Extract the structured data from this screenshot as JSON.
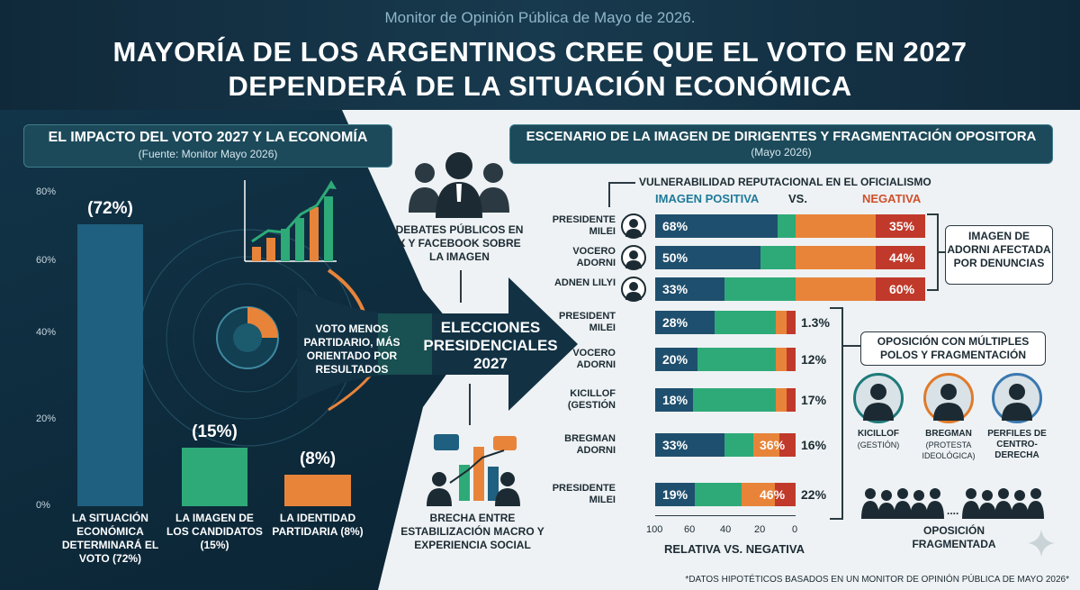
{
  "header": {
    "kicker": "Monitor de Opinión Pública de Mayo de 2026.",
    "title_line1": "MAYORÍA DE LOS ARGENTINOS CREE QUE EL VOTO EN 2027",
    "title_line2": "DEPENDERÁ DE LA SITUACIÓN ECONÓMICA"
  },
  "left_panel": {
    "title": "EL IMPACTO DEL VOTO 2027 Y LA ECONOMÍA",
    "subtitle": "(Fuente: Monitor Mayo 2026)"
  },
  "center": {
    "debates": "DEBATES PÚBLICOS EN X Y FACEBOOK SOBRE LA IMAGEN",
    "voto": "VOTO MENOS PARTIDARIO, MÁS ORIENTADO POR RESULTADOS",
    "elecciones": "ELECCIONES PRESIDENCIALES 2027",
    "brecha": "BRECHA ENTRE ESTABILIZACIÓN MACRO Y EXPERIENCIA SOCIAL"
  },
  "right_panel": {
    "title": "ESCENARIO DE LA IMAGEN DE DIRIGENTES Y FRAGMENTACIÓN OPOSITORA",
    "subtitle": "(Mayo 2026)",
    "vuln": "VULNERABILIDAD REPUTACIONAL EN EL OFICIALISMO",
    "pos": "IMAGEN POSITIVA",
    "vs": "VS.",
    "neg": "NEGATIVA",
    "adorni_box": "IMAGEN DE ADORNI AFECTADA POR DENUNCIAS",
    "oposicion_box": "OPOSICIÓN CON MÚLTIPLES POLOS Y FRAGMENTACIÓN",
    "x_axis_label": "RELATIVA VS. NEGATIVA",
    "frag_label": "OPOSICIÓN FRAGMENTADA",
    "dots": "....",
    "footnote": "*DATOS HIPOTÉTICOS BASADOS EN UN MONITOR DE OPINIÓN PÚBLICA DE MAYO 2026*"
  },
  "opposition": [
    {
      "name": "KICILLOF",
      "sub": "(GESTIÓN)",
      "color": "#1e7a7a"
    },
    {
      "name": "BREGMAN",
      "sub": "(PROTESTA IDEOLÓGICA)",
      "color": "#e07a2a"
    },
    {
      "name": "PERFILES DE CENTRO-DERECHA",
      "sub": "",
      "color": "#3a78b0"
    }
  ],
  "colors": {
    "navy": "#1f4f6e",
    "green": "#2eaa78",
    "orange": "#e8843a",
    "red": "#c0392b"
  },
  "chart_data": [
    {
      "type": "bar",
      "categories": [
        "LA SITUACIÓN ECONÓMICA DETERMINARÁ EL VOTO (72%)",
        "LA IMAGEN DE LOS CANDIDATOS (15%)",
        "LA IDENTIDAD PARTIDARIA (8%)"
      ],
      "values": [
        72,
        15,
        8
      ],
      "value_labels": [
        "(72%)",
        "(15%)",
        "(8%)"
      ],
      "yticks": [
        "80%",
        "60%",
        "40%",
        "20%",
        "0%"
      ],
      "ylim": [
        0,
        80
      ],
      "colors": [
        "#1f5f7f",
        "#2eaa78",
        "#e8843a"
      ]
    },
    {
      "type": "bar",
      "orientation": "horizontal",
      "rows": [
        {
          "label": "PRESIDENTE MILEI",
          "pos": 68,
          "neg": 35,
          "pos_label": "68%",
          "neg_label": "35%",
          "side": ""
        },
        {
          "label": "VOCERO ADORNI",
          "pos": 50,
          "neg": 44,
          "pos_label": "50%",
          "neg_label": "44%",
          "side": ""
        },
        {
          "label": "ADNEN LILYI",
          "pos": 33,
          "neg": 60,
          "pos_label": "33%",
          "neg_label": "60%",
          "side": ""
        },
        {
          "label": "PRESIDENT MILEI",
          "pos": 28,
          "neg": 0,
          "pos_label": "28%",
          "neg_label": "",
          "side": "1.3%"
        },
        {
          "label": "VOCERO ADORNI",
          "pos": 20,
          "neg": 0,
          "pos_label": "20%",
          "neg_label": "",
          "side": "12%"
        },
        {
          "label": "KICILLOF (GESTIÓN",
          "pos": 18,
          "neg": 0,
          "pos_label": "18%",
          "neg_label": "",
          "side": "17%"
        },
        {
          "label": "BREGMAN ADORNI",
          "pos": 33,
          "neg": 36,
          "pos_label": "33%",
          "neg_label": "36%",
          "side": "16%"
        },
        {
          "label": "PRESIDENTE MILEI",
          "pos": 19,
          "neg": 46,
          "pos_label": "19%",
          "neg_label": "46%",
          "side": "22%"
        }
      ],
      "xticks": [
        "100",
        "60",
        "40",
        "20",
        "0"
      ]
    }
  ]
}
